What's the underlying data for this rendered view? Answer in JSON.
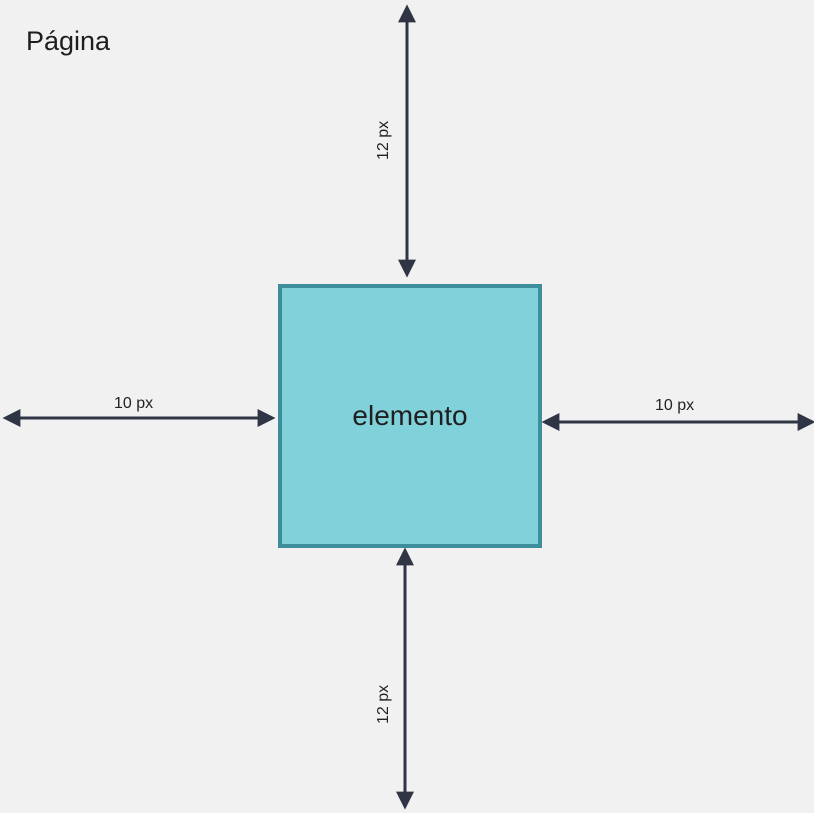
{
  "page": {
    "title": "Página"
  },
  "element": {
    "label": "elemento"
  },
  "measurements": {
    "top": "12 px",
    "bottom": "12 px",
    "left": "10 px",
    "right": "10 px"
  },
  "colors": {
    "page_background": "#f1f1f1",
    "element_fill": "#80d1d9",
    "element_border": "#3e8d9b",
    "arrow": "#2f3545"
  }
}
